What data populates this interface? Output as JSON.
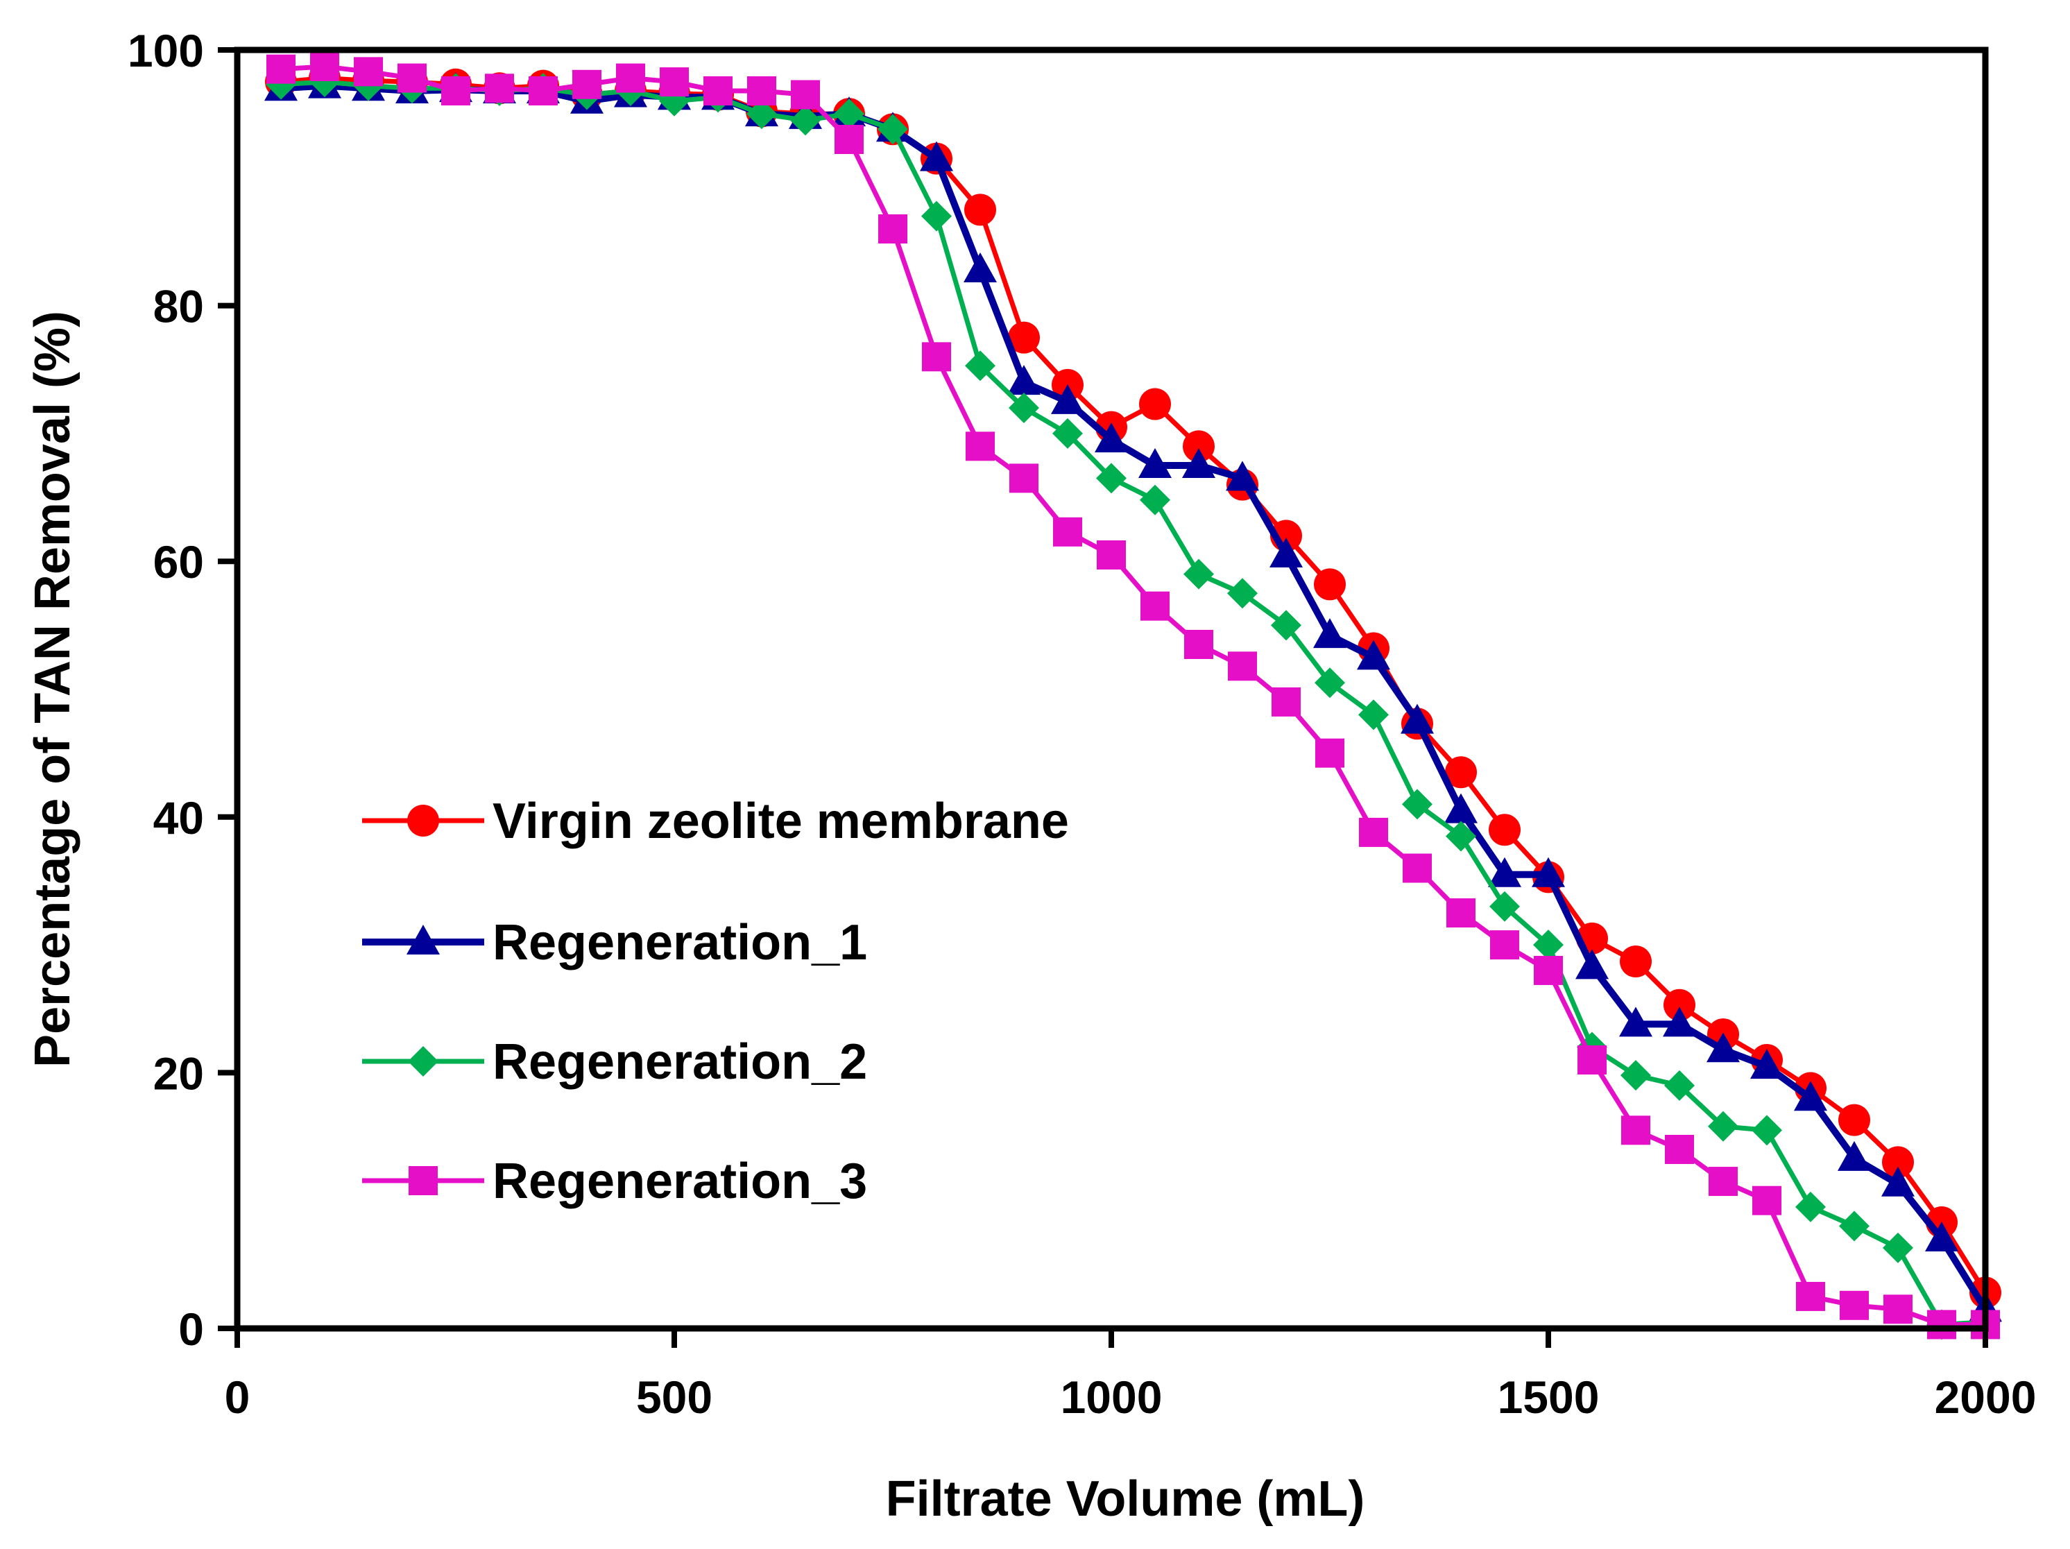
{
  "chart_data": {
    "type": "line",
    "title": "",
    "xlabel": "Filtrate Volume (mL)",
    "ylabel": "Percentage of TAN Removal (%)",
    "xlim": [
      0,
      2000
    ],
    "ylim": [
      0,
      100
    ],
    "x_ticks": [
      0,
      500,
      1000,
      1500,
      2000
    ],
    "y_ticks": [
      0,
      20,
      40,
      60,
      80,
      100
    ],
    "x_tick_labels": [
      "0",
      "500",
      "1000",
      "1500",
      "2000"
    ],
    "y_tick_labels": [
      "0",
      "20",
      "40",
      "60",
      "80",
      "100"
    ],
    "grid": false,
    "legend_position": "center-left",
    "x": [
      50,
      100,
      150,
      200,
      250,
      300,
      350,
      400,
      450,
      500,
      550,
      600,
      650,
      700,
      750,
      800,
      850,
      900,
      950,
      1000,
      1050,
      1100,
      1150,
      1200,
      1250,
      1300,
      1350,
      1400,
      1450,
      1500,
      1550,
      1600,
      1650,
      1700,
      1750,
      1800,
      1850,
      1900,
      1950,
      2000
    ],
    "series": [
      {
        "name": "Virgin zeolite membrane",
        "color": "#ff0000",
        "marker": "circle",
        "values": [
          97.5,
          97.8,
          97.6,
          97.5,
          97.3,
          97.0,
          97.2,
          96.5,
          96.8,
          96.6,
          96.5,
          95.2,
          95.0,
          95.0,
          93.8,
          91.5,
          87.5,
          77.5,
          73.8,
          70.5,
          72.3,
          69.0,
          66.0,
          62.0,
          58.2,
          53.2,
          47.3,
          43.5,
          39.0,
          35.3,
          30.5,
          28.7,
          25.3,
          23.0,
          21.0,
          18.8,
          16.3,
          13.0,
          8.3,
          2.8
        ]
      },
      {
        "name": "Regeneration_1",
        "color": "#000099",
        "marker": "triangle",
        "values": [
          97.0,
          97.2,
          97.0,
          96.8,
          96.9,
          96.8,
          96.8,
          96.0,
          96.5,
          96.3,
          96.3,
          95.0,
          94.8,
          95.0,
          93.8,
          91.5,
          82.8,
          74.0,
          72.5,
          69.5,
          67.5,
          67.5,
          66.5,
          60.5,
          54.2,
          52.5,
          47.5,
          40.5,
          35.5,
          35.5,
          28.3,
          23.8,
          23.8,
          21.8,
          20.5,
          18.0,
          13.3,
          11.3,
          7.0,
          1.5
        ]
      },
      {
        "name": "Regeneration_2",
        "color": "#00b050",
        "marker": "diamond",
        "values": [
          97.3,
          97.5,
          97.2,
          97.0,
          97.0,
          96.8,
          97.0,
          96.5,
          96.8,
          96.0,
          96.3,
          95.0,
          94.5,
          95.0,
          93.8,
          87.0,
          75.3,
          72.0,
          70.0,
          66.5,
          64.8,
          59.0,
          57.5,
          55.0,
          50.5,
          48.0,
          41.0,
          38.5,
          33.0,
          30.0,
          22.0,
          19.8,
          19.0,
          15.8,
          15.5,
          9.5,
          8.0,
          6.3,
          0.3,
          0.5
        ]
      },
      {
        "name": "Regeneration_3",
        "color": "#e60fc8",
        "marker": "square",
        "values": [
          98.5,
          98.7,
          98.3,
          97.8,
          96.8,
          97.0,
          96.8,
          97.3,
          97.8,
          97.5,
          96.8,
          96.8,
          96.5,
          93.0,
          86.0,
          76.0,
          69.0,
          66.5,
          62.3,
          60.5,
          56.5,
          53.5,
          51.8,
          49.0,
          45.0,
          38.8,
          36.0,
          32.5,
          30.0,
          28.0,
          21.0,
          15.5,
          14.0,
          11.5,
          10.0,
          2.5,
          1.8,
          1.5,
          0.3,
          0.3
        ]
      }
    ]
  }
}
